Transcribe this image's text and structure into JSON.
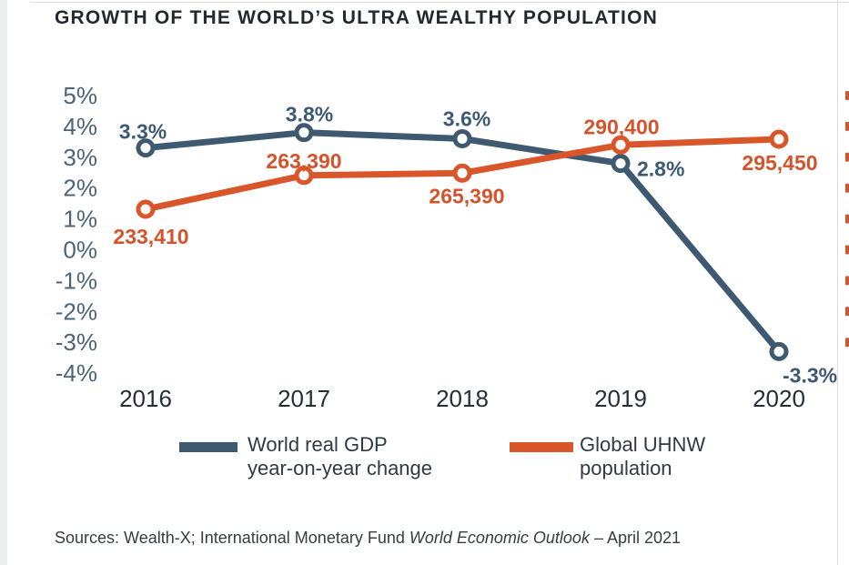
{
  "page": {
    "title": "GROWTH OF THE WORLD’S ULTRA WEALTHY POPULATION",
    "sources_prefix": "Sources: Wealth-X; International Monetary Fund ",
    "sources_italic": "World Economic Outlook",
    "sources_suffix": " – April 2021"
  },
  "colors": {
    "gdp_line": "#3f5a70",
    "gdp_label": "#3c5a74",
    "uhnw_line": "#d9562b",
    "uhnw_label": "#d4532b",
    "axis_tick_label": "#4c6478",
    "year_label": "#262f38",
    "marker_fill": "#ffffff"
  },
  "chart_data": {
    "type": "line",
    "title": "GROWTH OF THE WORLD’S ULTRA WEALTHY POPULATION",
    "x": [
      2016,
      2017,
      2018,
      2019,
      2020
    ],
    "x_labels": [
      "2016",
      "2017",
      "2018",
      "2019",
      "2020"
    ],
    "left_axis": {
      "unit": "%",
      "values": [
        5,
        4,
        3,
        2,
        1,
        0,
        -1,
        -2,
        -3,
        -4
      ],
      "tick_labels": [
        "5%",
        "4%",
        "3%",
        "2%",
        "1%",
        "0%",
        "-1%",
        "-2%",
        "-3%",
        "-4%"
      ],
      "ylim": [
        -4,
        5
      ]
    },
    "right_axis": {
      "labels_cropped_at_edge": true
    },
    "grid": false,
    "legend_position": "bottom",
    "series": [
      {
        "name": "World real GDP year-on-year change",
        "axis": "left",
        "color": "#3f5a70",
        "values": [
          3.3,
          3.8,
          3.6,
          2.8,
          -3.3
        ],
        "point_labels": [
          "3.3%",
          "3.8%",
          "3.6%",
          "2.8%",
          "-3.3%"
        ]
      },
      {
        "name": "Global UHNW population",
        "axis": "right",
        "color": "#d9562b",
        "values": [
          233410,
          263390,
          265390,
          290400,
          295450
        ],
        "point_labels": [
          "233,410",
          "263,390",
          "265,390",
          "290,400",
          "295,450"
        ]
      }
    ],
    "legend": [
      {
        "label_line1": "World real GDP",
        "label_line2": "year-on-year change",
        "color": "#3f5a70"
      },
      {
        "label_line1": "Global UHNW",
        "label_line2": "population",
        "color": "#d9562b"
      }
    ]
  }
}
